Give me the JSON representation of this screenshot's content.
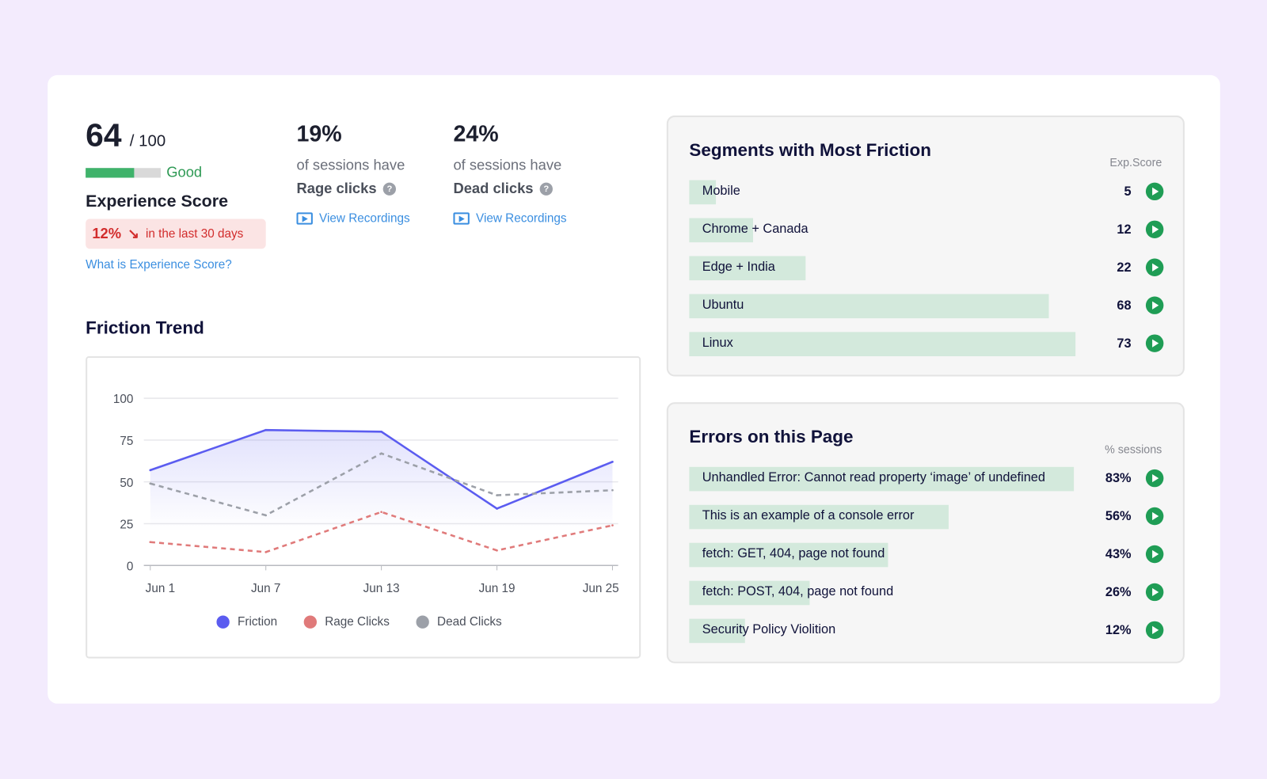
{
  "score": {
    "value": "64",
    "out_of": "/ 100",
    "fill": 0.64,
    "rating": "Good",
    "title": "Experience Score",
    "change": "12%",
    "change_text": "in the last 30 days",
    "help_link": "What is Experience Score?"
  },
  "stats": [
    {
      "pct": "19%",
      "line1": "of sessions have",
      "line2": "Rage clicks",
      "link": "View Recordings"
    },
    {
      "pct": "24%",
      "line1": "of sessions have",
      "line2": "Dead clicks",
      "link": "View Recordings"
    }
  ],
  "trend_title": "Friction Trend",
  "chart_data": {
    "type": "line",
    "categories": [
      "Jun 1",
      "Jun 7",
      "Jun 13",
      "Jun 19",
      "Jun 25"
    ],
    "ylim": [
      0,
      100
    ],
    "yticks": [
      "0",
      "25",
      "50",
      "75",
      "100"
    ],
    "grid": true,
    "legend": "bottom",
    "series": [
      {
        "name": "Friction",
        "values": [
          57,
          81,
          80,
          34,
          62
        ],
        "color": "#5b5cf0",
        "style": "solid",
        "fill": true
      },
      {
        "name": "Rage Clicks",
        "values": [
          14,
          8,
          32,
          9,
          24
        ],
        "color": "#e07a7a",
        "style": "dashed"
      },
      {
        "name": "Dead Clicks",
        "values": [
          49,
          30,
          67,
          42,
          45
        ],
        "color": "#9ca0a8",
        "style": "dashed"
      }
    ]
  },
  "segments": {
    "title": "Segments with Most Friction",
    "column": "Exp.Score",
    "rows": [
      {
        "label": "Mobile",
        "value": "5",
        "score": 5
      },
      {
        "label": "Chrome + Canada",
        "value": "12",
        "score": 12
      },
      {
        "label": "Edge + India",
        "value": "22",
        "score": 22
      },
      {
        "label": "Ubuntu",
        "value": "68",
        "score": 68
      },
      {
        "label": "Linux",
        "value": "73",
        "score": 73
      }
    ]
  },
  "errors": {
    "title": "Errors on this Page",
    "column": "% sessions",
    "rows": [
      {
        "label": "Unhandled Error: Cannot read property ‘image’ of undefined",
        "value": "83%",
        "pct": 83
      },
      {
        "label": "This is an example of a console error",
        "value": "56%",
        "pct": 56
      },
      {
        "label": "fetch: GET, 404, page not found",
        "value": "43%",
        "pct": 43
      },
      {
        "label": "fetch: POST, 404, page not found",
        "value": "26%",
        "pct": 26
      },
      {
        "label": "Security Policy Violition",
        "value": "12%",
        "pct": 12
      }
    ]
  }
}
